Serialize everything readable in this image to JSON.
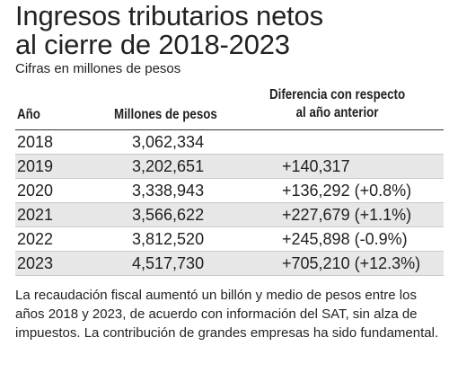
{
  "title_line1": "Ingresos tributarios netos",
  "title_line2": "al cierre de 2018-2023",
  "subtitle": "Cifras en millones de pesos",
  "table": {
    "headers": {
      "year": "Año",
      "millions": "Millones de pesos",
      "difference_line1": "Diferencia con respecto",
      "difference_line2": "al año anterior"
    },
    "rows": [
      {
        "year": "2018",
        "value": "3,062,334",
        "difference": ""
      },
      {
        "year": "2019",
        "value": "3,202,651",
        "difference": "+140,317"
      },
      {
        "year": "2020",
        "value": "3,338,943",
        "difference": "+136,292 (+0.8%)"
      },
      {
        "year": "2021",
        "value": "3,566,622",
        "difference": "+227,679 (+1.1%)"
      },
      {
        "year": "2022",
        "value": "3,812,520",
        "difference": "+245,898 (-0.9%)"
      },
      {
        "year": "2023",
        "value": "4,517,730",
        "difference": "+705,210 (+12.3%)"
      }
    ]
  },
  "note": "La recaudación fiscal aumentó un billón y medio de pesos entre los años 2018 y 2023, de acuerdo con información del SAT, sin alza de impuestos. La contribución de grandes empresas ha sido fundamental.",
  "colors": {
    "shaded_row": "#e7e7e7",
    "text": "#1f1f1f"
  }
}
